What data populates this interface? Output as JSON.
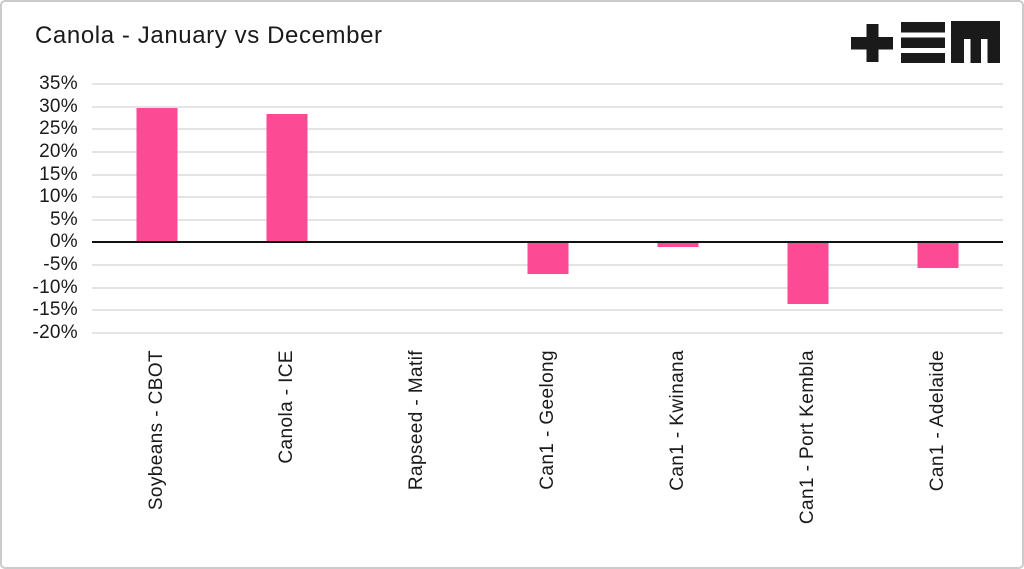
{
  "header": {
    "title": "Canola - January vs December",
    "logo_icon": "tem-logo"
  },
  "colors": {
    "bar": "#fd4a94",
    "grid": "#e4e4e4",
    "zero_line": "#111111",
    "text": "#1a1a1a",
    "border": "#cbcbcb",
    "logo": "#1a1a1a"
  },
  "chart_data": {
    "type": "bar",
    "title": "Canola - January vs December",
    "categories": [
      "Soybeans - CBOT",
      "Canola - ICE",
      "Rapseed - Matif",
      "Can1 - Geelong",
      "Can1 - Kwinana",
      "Can1 - Port Kembla",
      "Can1 - Adelaide"
    ],
    "values": [
      29.7,
      28.4,
      0,
      -6.9,
      -1.0,
      -13.7,
      -5.7
    ],
    "value_unit": "%",
    "xlabel": "",
    "ylabel": "",
    "ylim": [
      -20,
      35
    ],
    "grid": true,
    "legend_position": "none",
    "y_ticks": [
      {
        "value": 35,
        "label": "35%"
      },
      {
        "value": 30,
        "label": "30%"
      },
      {
        "value": 25,
        "label": "25%"
      },
      {
        "value": 20,
        "label": "20%"
      },
      {
        "value": 15,
        "label": "15%"
      },
      {
        "value": 10,
        "label": "10%"
      },
      {
        "value": 5,
        "label": "5%"
      },
      {
        "value": 0,
        "label": "0%"
      },
      {
        "value": -5,
        "label": "-5%"
      },
      {
        "value": -10,
        "label": "-10%"
      },
      {
        "value": -15,
        "label": "-15%"
      },
      {
        "value": -20,
        "label": "-20%"
      }
    ]
  }
}
